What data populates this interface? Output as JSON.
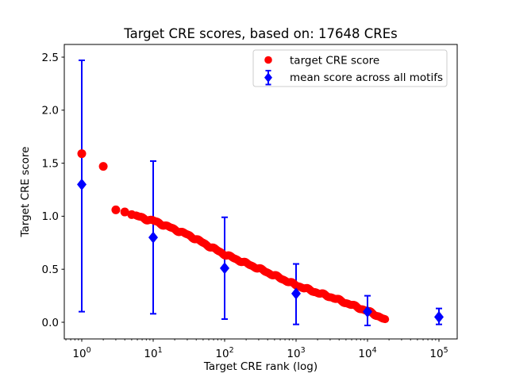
{
  "chart_data": {
    "type": "scatter",
    "title": "Target CRE scores, based on: 17648 CREs",
    "xlabel": "Target CRE rank (log)",
    "ylabel": "Target CRE score",
    "xscale": "log",
    "xlim_log10": [
      -0.244,
      5.256
    ],
    "ylim": [
      -0.157,
      2.62
    ],
    "xtick_base": "10",
    "xtick_exponents": [
      0,
      1,
      2,
      3,
      4,
      5
    ],
    "yticks": [
      0.0,
      0.5,
      1.0,
      1.5,
      2.0,
      2.5
    ],
    "grid": false,
    "colors": {
      "target": "#ff0000",
      "mean": "#0000ff",
      "legend_border": "#cccccc",
      "spine": "#000000"
    },
    "legend": {
      "position": "upper right",
      "items": [
        {
          "label": "target CRE score",
          "marker": "red-circle"
        },
        {
          "label": "mean score across all motifs",
          "marker": "blue-diamond-errorbar"
        }
      ]
    },
    "series": [
      {
        "name": "target CRE score",
        "type": "scatter",
        "marker": "circle",
        "color": "#ff0000",
        "n_points": 17648,
        "head_points": {
          "ranks": [
            1,
            2,
            3,
            4,
            5
          ],
          "scores": [
            1.59,
            1.47,
            1.06,
            1.04,
            1.015
          ]
        },
        "curve_anchors_log10rank_score": [
          [
            0,
            1.59
          ],
          [
            0.301,
            1.47
          ],
          [
            0.477,
            1.06
          ],
          [
            0.602,
            1.04
          ],
          [
            0.699,
            1.015
          ],
          [
            0.778,
            1.0
          ],
          [
            0.845,
            0.985
          ],
          [
            0.903,
            0.972
          ],
          [
            1.0,
            0.958
          ],
          [
            1.25,
            0.89
          ],
          [
            1.5,
            0.82
          ],
          [
            1.75,
            0.73
          ],
          [
            2.0,
            0.64
          ],
          [
            2.25,
            0.57
          ],
          [
            2.5,
            0.5
          ],
          [
            2.75,
            0.425
          ],
          [
            3.0,
            0.35
          ],
          [
            3.25,
            0.29
          ],
          [
            3.5,
            0.235
          ],
          [
            3.75,
            0.17
          ],
          [
            4.0,
            0.105
          ],
          [
            4.1,
            0.075
          ],
          [
            4.2,
            0.04
          ],
          [
            4.247,
            0.02
          ]
        ],
        "band_log10_range": [
          0.76,
          4.247
        ]
      },
      {
        "name": "mean score across all motifs",
        "type": "errorbar",
        "marker": "diamond",
        "color": "#0000ff",
        "ranks": [
          1,
          10,
          100,
          1000,
          10000,
          100000
        ],
        "means": [
          1.3,
          0.8,
          0.51,
          0.27,
          0.1,
          0.05
        ],
        "err_low": [
          0.1,
          0.08,
          0.03,
          -0.02,
          -0.03,
          -0.02
        ],
        "err_high": [
          2.47,
          1.52,
          0.99,
          0.55,
          0.25,
          0.13
        ]
      }
    ]
  }
}
